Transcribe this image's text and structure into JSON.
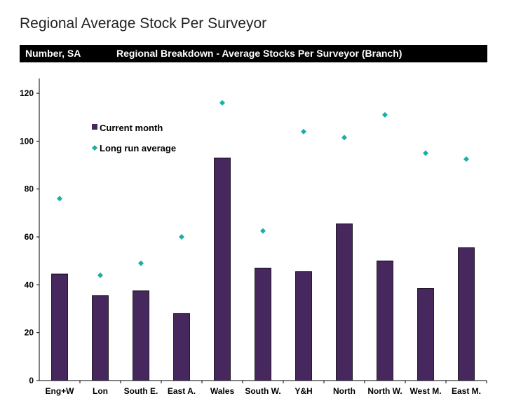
{
  "page_title": "Regional Average Stock Per Surveyor",
  "header": {
    "left_label": "Number, SA",
    "center_label": "Regional Breakdown - Average Stocks Per Surveyor (Branch)"
  },
  "colors": {
    "bar": "#46285e",
    "marker": "#1aaea6",
    "header_bg": "#000000"
  },
  "chart_data": {
    "type": "bar",
    "categories": [
      "Eng+W",
      "Lon",
      "South E.",
      "East A.",
      "Wales",
      "South W.",
      "Y&H",
      "North",
      "North W.",
      "West M.",
      "East M."
    ],
    "series": [
      {
        "name": "Current month",
        "kind": "bar",
        "values": [
          44.5,
          35.5,
          37.5,
          28,
          93,
          47,
          45.5,
          65.5,
          50,
          38.5,
          55.5
        ]
      },
      {
        "name": "Long run average",
        "kind": "marker",
        "values": [
          76,
          44,
          49,
          60,
          116,
          62.5,
          104,
          101.5,
          111,
          95,
          92.5
        ]
      }
    ],
    "y_ticks": [
      0,
      20,
      40,
      60,
      80,
      100,
      120
    ],
    "ylim": [
      0,
      125
    ],
    "grid": false,
    "legend_position": "top-left"
  }
}
